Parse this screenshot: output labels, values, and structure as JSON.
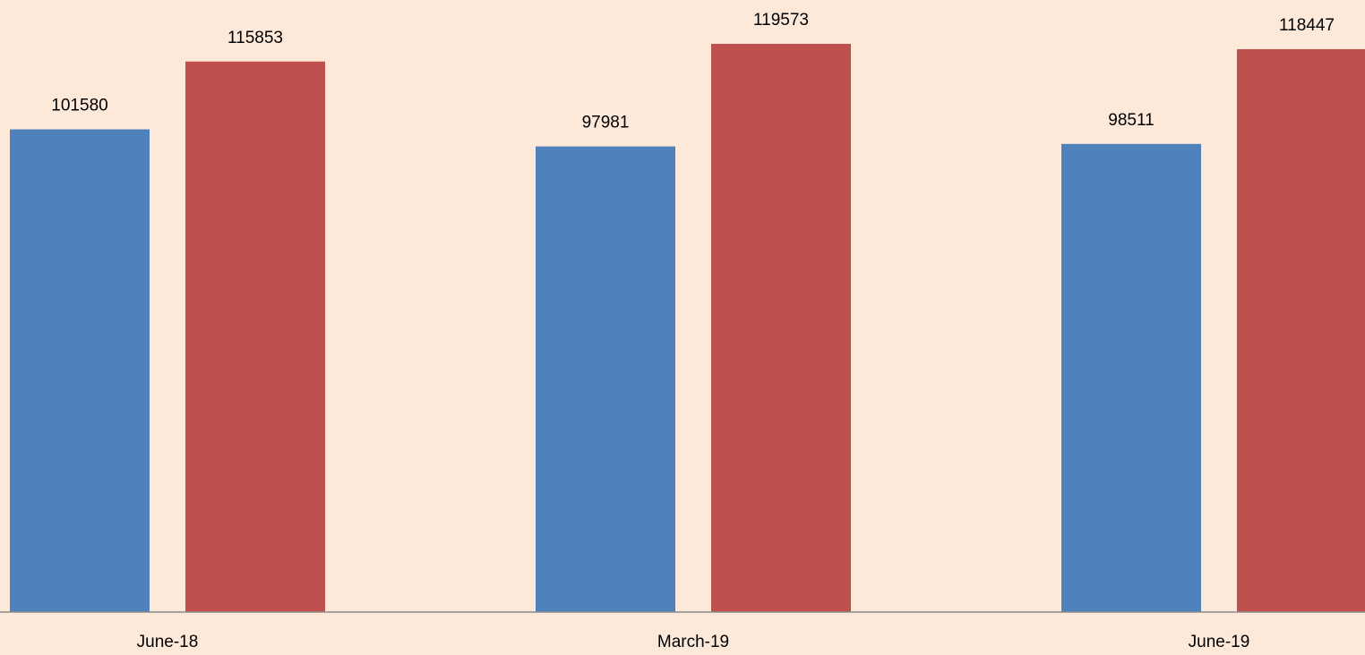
{
  "chart_data": {
    "type": "bar",
    "categories": [
      "June-18",
      "March-19",
      "June-19"
    ],
    "series": [
      {
        "color": "#4f81bd",
        "values": [
          101580,
          97981,
          98511
        ]
      },
      {
        "color": "#c0504d",
        "values": [
          115853,
          119573,
          118447
        ]
      }
    ],
    "ylim": [
      0,
      128800
    ]
  }
}
